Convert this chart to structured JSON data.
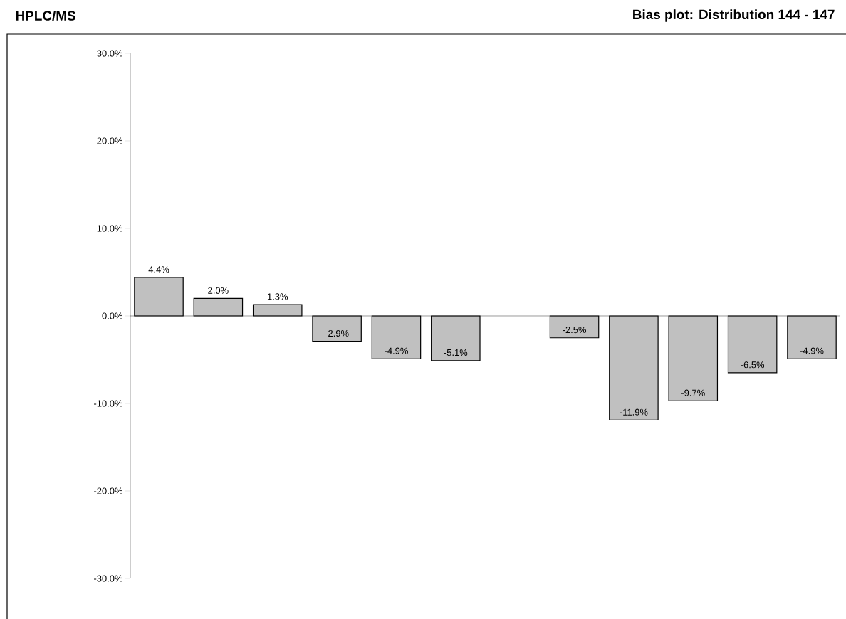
{
  "chart_data": {
    "type": "bar",
    "title": "HPLC/MS",
    "subtitle": "Bias plot: Distribution 144 - 147",
    "categories": [
      null,
      null,
      null,
      null,
      null,
      null,
      null,
      null,
      null,
      null,
      null,
      null
    ],
    "values": [
      4.4,
      2.0,
      1.3,
      -2.9,
      -4.9,
      -5.1,
      null,
      -2.5,
      -11.9,
      -9.7,
      -6.5,
      -4.9
    ],
    "value_labels": [
      "4.4%",
      "2.0%",
      "1.3%",
      "-2.9%",
      "-4.9%",
      "-5.1%",
      null,
      "-2.5%",
      "-11.9%",
      "-9.7%",
      "-6.5%",
      "-4.9%"
    ],
    "color": "#c0c0c0",
    "ylim": [
      -30,
      30
    ],
    "yticks": [
      {
        "value": -30,
        "label": "-30.0%"
      },
      {
        "value": -20,
        "label": "-20.0%"
      },
      {
        "value": -10,
        "label": "-10.0%"
      },
      {
        "value": 0,
        "label": "0.0%"
      },
      {
        "value": 10,
        "label": "10.0%"
      },
      {
        "value": 20,
        "label": "20.0%"
      },
      {
        "value": 30,
        "label": "30.0%"
      }
    ],
    "tick_labels": "y"
  }
}
